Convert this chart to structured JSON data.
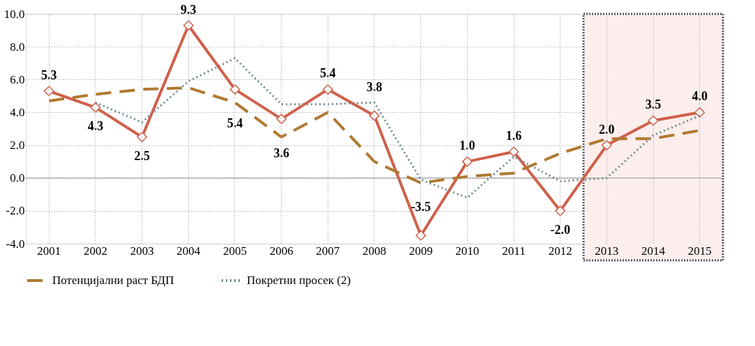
{
  "chart_data": {
    "type": "line",
    "categories": [
      "2001",
      "2002",
      "2003",
      "2004",
      "2005",
      "2006",
      "2007",
      "2008",
      "2009",
      "2010",
      "2011",
      "2012",
      "2013",
      "2014",
      "2015"
    ],
    "series": [
      {
        "color": "#d0604a",
        "line_style": "solid",
        "marker": "diamond",
        "value_labels": [
          "5.3",
          "4.3",
          "2.5",
          "9.3",
          "5.4",
          "3.6",
          "5.4",
          "3.8",
          "-3.5",
          "1.0",
          "1.6",
          "-2.0",
          "2.0",
          "3.5",
          "4.0"
        ],
        "values": [
          5.3,
          4.3,
          2.5,
          9.3,
          5.4,
          3.6,
          5.4,
          3.8,
          -3.5,
          1.0,
          1.6,
          -2.0,
          2.0,
          3.5,
          4.0
        ]
      },
      {
        "name": "Потенцијални раст БДП",
        "color": "#b07830",
        "line_style": "dashed",
        "marker": "none",
        "values": [
          4.7,
          5.1,
          5.4,
          5.5,
          4.6,
          2.5,
          4.0,
          1.0,
          -0.3,
          0.1,
          0.3,
          1.5,
          2.4,
          2.4,
          2.9
        ]
      },
      {
        "name": "Покретни просек (2)",
        "color": "#6f8a90",
        "line_style": "dotted",
        "marker": "none",
        "values": [
          null,
          4.6,
          3.4,
          5.9,
          7.3,
          4.5,
          4.5,
          4.6,
          -0.1,
          -1.2,
          1.3,
          -0.2,
          0.0,
          2.6,
          3.8
        ]
      }
    ],
    "ylim": [
      -4,
      10
    ],
    "yticks": [
      {
        "value": -4,
        "label": "-4.0"
      },
      {
        "value": -2,
        "label": "-2.0"
      },
      {
        "value": 0,
        "label": "0.0"
      },
      {
        "value": 2,
        "label": "2.0"
      },
      {
        "value": 4,
        "label": "4.0"
      },
      {
        "value": 6,
        "label": "6.0"
      },
      {
        "value": 8,
        "label": "8.0"
      },
      {
        "value": 10,
        "label": "10.0"
      }
    ],
    "bands": [
      {
        "axis": "x",
        "from": "2013",
        "to": "2015",
        "color": "#fbeeec"
      }
    ],
    "ref_lines": [
      {
        "axis": "y",
        "value": 0,
        "color": "#999999"
      }
    ],
    "grid": true,
    "legend": "bottom"
  }
}
